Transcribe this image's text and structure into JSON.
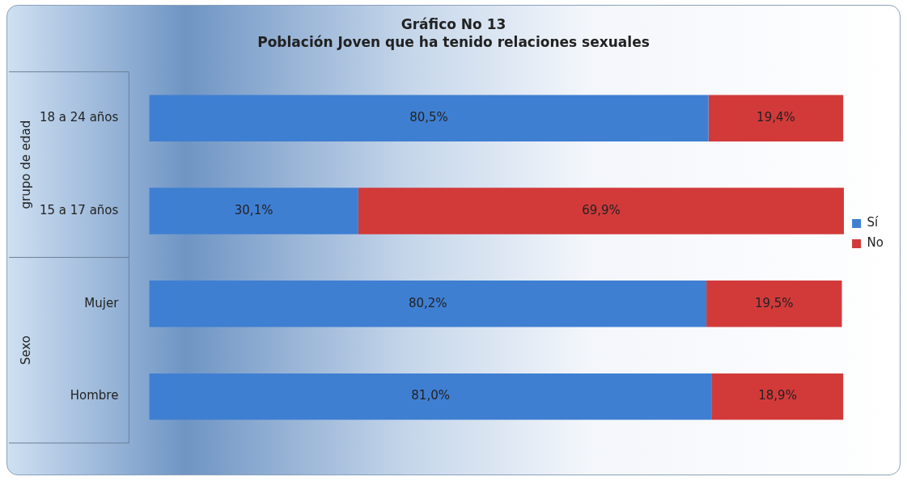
{
  "chart_data": {
    "type": "bar",
    "orientation": "horizontal",
    "stacked": true,
    "title": "Gráfico No 13",
    "subtitle": "Población Joven que ha tenido relaciones sexuales",
    "categories": [
      "18 a 24 años",
      "15 a 17 años",
      "Mujer",
      "Hombre"
    ],
    "series": [
      {
        "name": "Sí",
        "color": "#3f7fd2",
        "values": [
          80.5,
          30.1,
          80.2,
          81.0
        ],
        "value_labels": [
          "80,5%",
          "30,1%",
          "80,2%",
          "81,0%"
        ]
      },
      {
        "name": "No",
        "color": "#d23a3a",
        "values": [
          19.4,
          69.9,
          19.5,
          18.9
        ],
        "value_labels": [
          "19,4%",
          "69,9%",
          "19,5%",
          "18,9%"
        ]
      }
    ],
    "legend": "right",
    "grid": false,
    "annotations": [
      "grupo de edad",
      "Sexo"
    ]
  }
}
